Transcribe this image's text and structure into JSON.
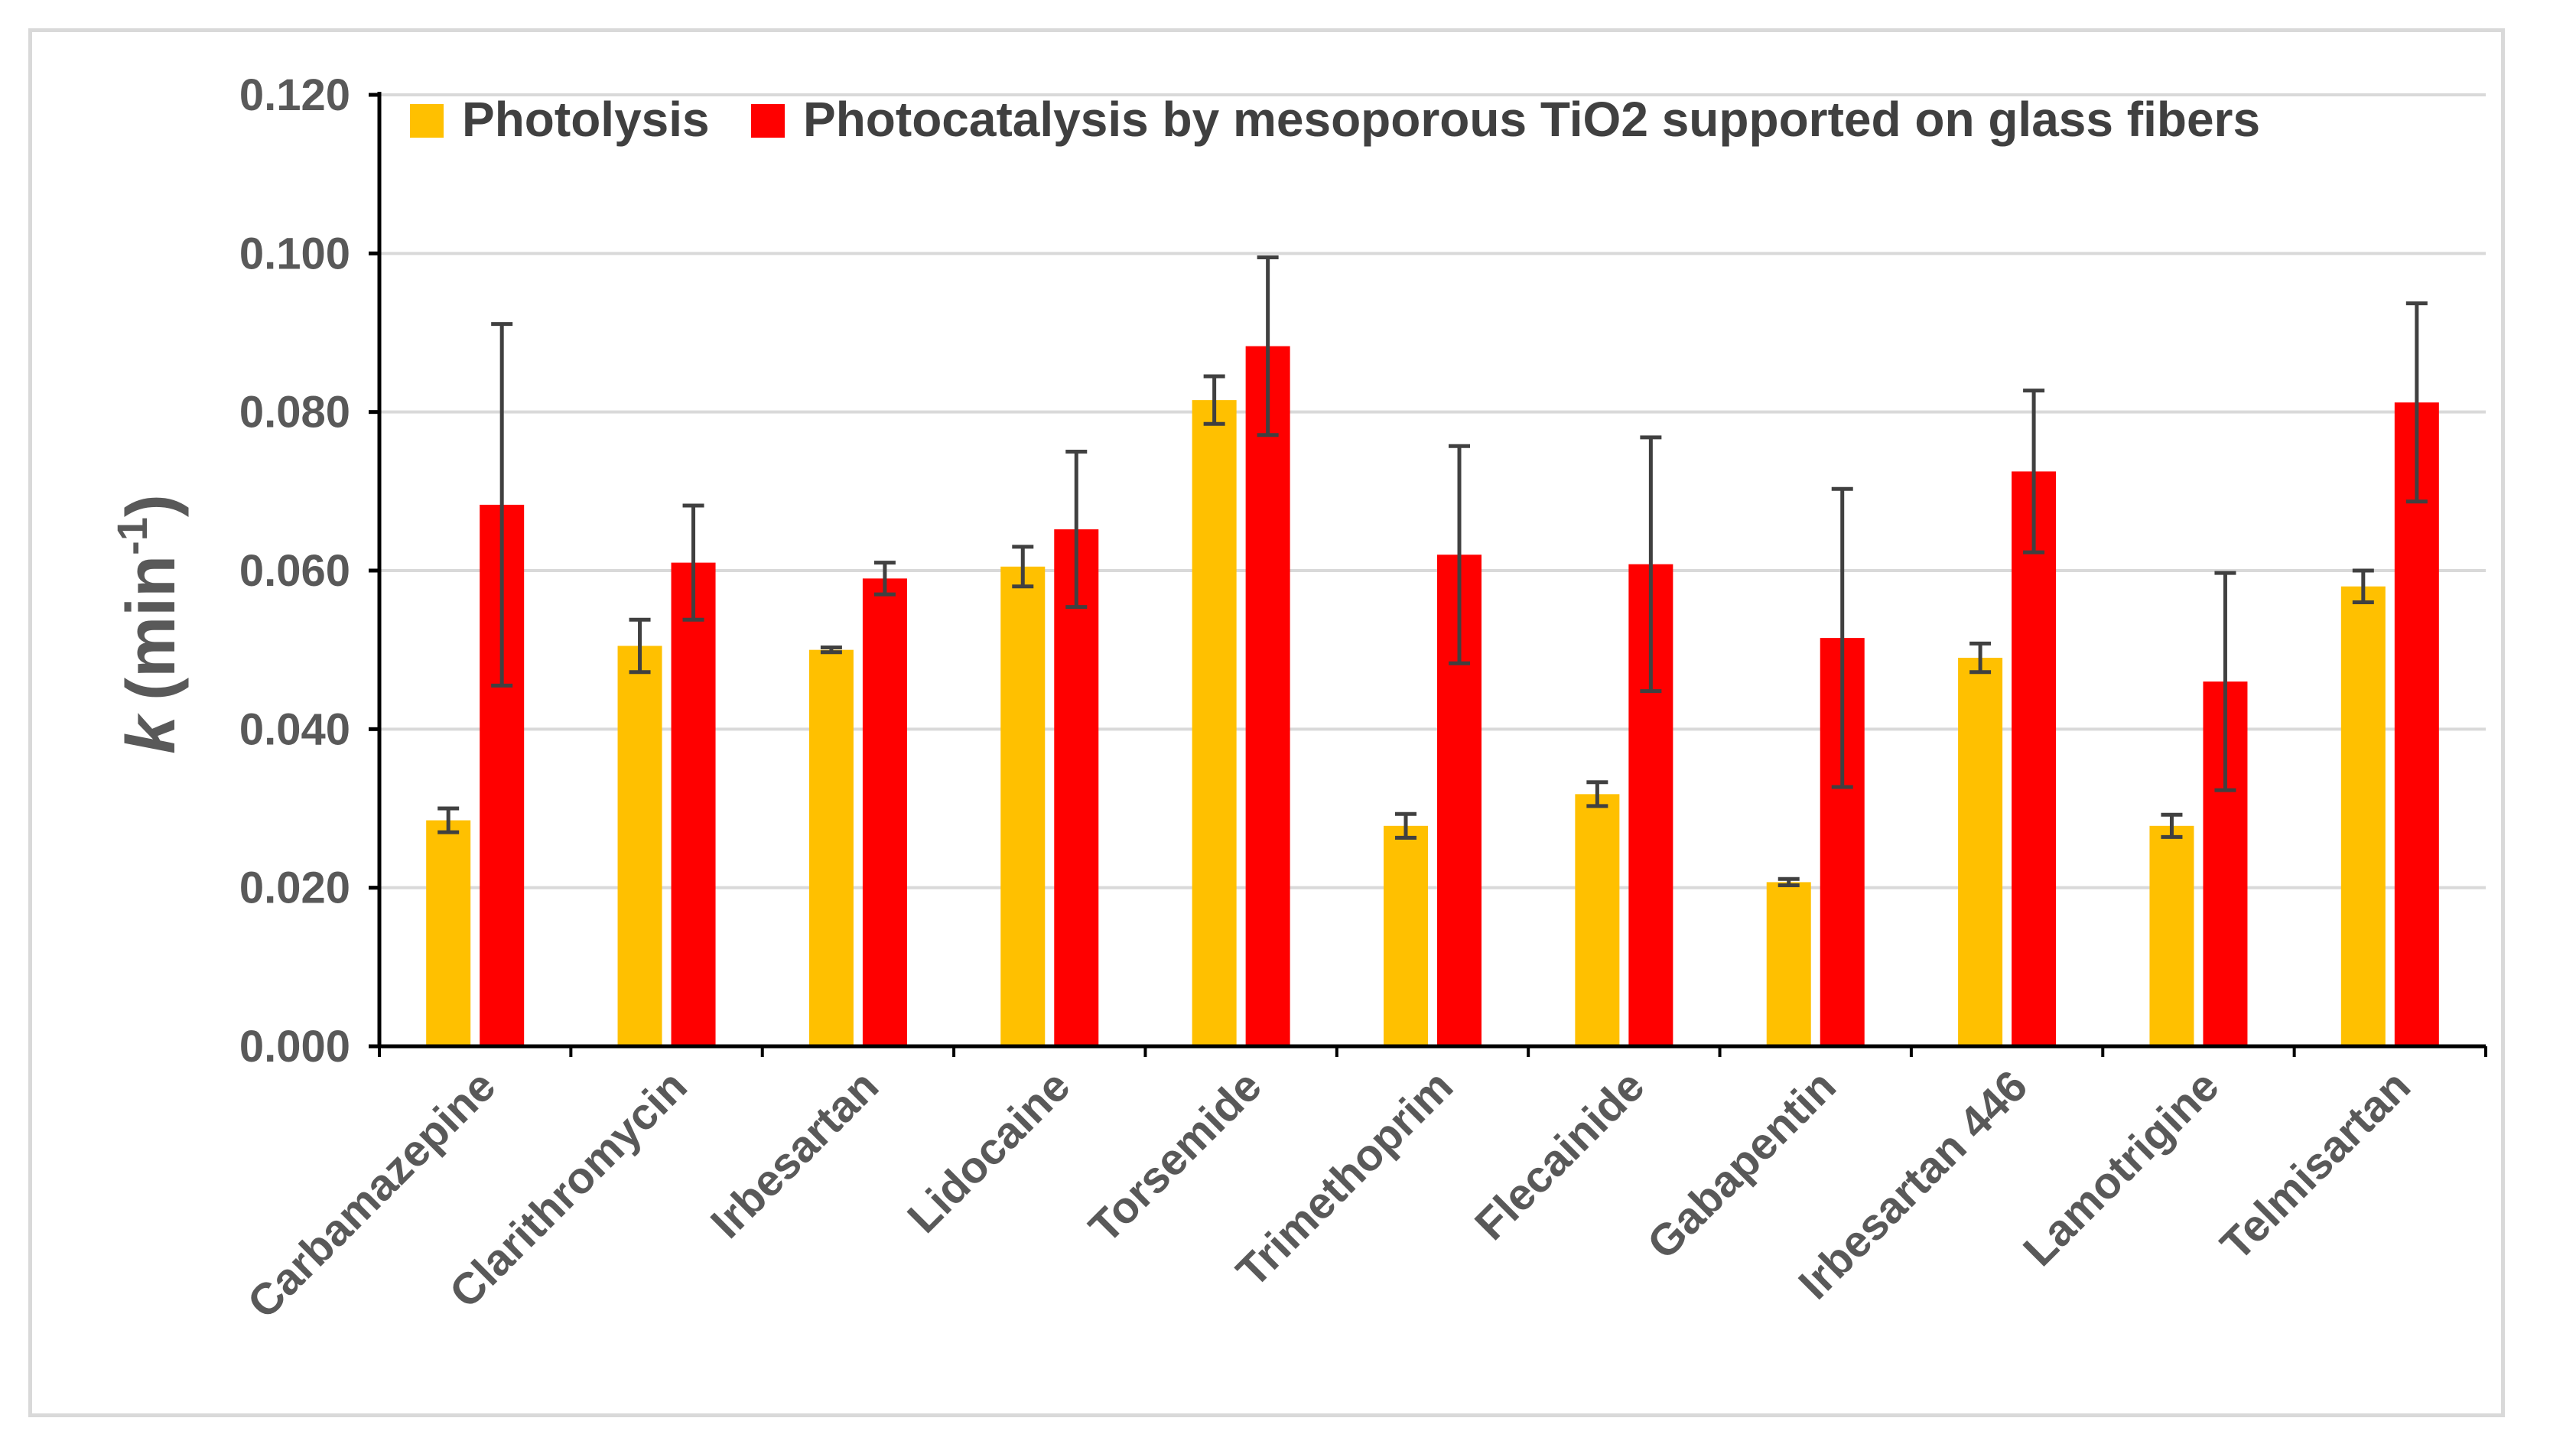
{
  "chart_data": {
    "type": "bar",
    "title": "",
    "xlabel": "",
    "ylabel": {
      "symbol": "k",
      "unit_open": "(min",
      "unit_sup": "-1",
      "unit_close": ")"
    },
    "ylim": [
      0,
      0.12
    ],
    "yticks": [
      "0.000",
      "0.020",
      "0.040",
      "0.060",
      "0.080",
      "0.100",
      "0.120"
    ],
    "ytick_values": [
      0,
      0.02,
      0.04,
      0.06,
      0.08,
      0.1,
      0.12
    ],
    "grid": true,
    "legend_position": "top",
    "categories": [
      "Carbamazepine",
      "Clarithromycin",
      "Irbesartan",
      "Lidocaine",
      "Torsemide",
      "Trimethoprim",
      "Flecainide",
      "Gabapentin",
      "Irbesartan 446",
      "Lamotrigine",
      "Telmisartan"
    ],
    "series": [
      {
        "name": "Photolysis",
        "color": "#ffc000",
        "values": [
          0.0285,
          0.0505,
          0.05,
          0.0605,
          0.0815,
          0.0278,
          0.0318,
          0.0207,
          0.049,
          0.0278,
          0.058
        ],
        "errors": [
          0.0015,
          0.0033,
          0.0003,
          0.0025,
          0.003,
          0.0015,
          0.0015,
          0.0004,
          0.0018,
          0.0014,
          0.002
        ]
      },
      {
        "name": "Photocatalysis by mesoporous TiO2 supported on glass fibers",
        "color": "#ff0000",
        "values": [
          0.0683,
          0.061,
          0.059,
          0.0652,
          0.0883,
          0.062,
          0.0608,
          0.0515,
          0.0725,
          0.046,
          0.0812
        ],
        "errors": [
          0.0228,
          0.0072,
          0.002,
          0.0098,
          0.0112,
          0.0137,
          0.016,
          0.0188,
          0.0102,
          0.0137,
          0.0125
        ]
      }
    ]
  }
}
